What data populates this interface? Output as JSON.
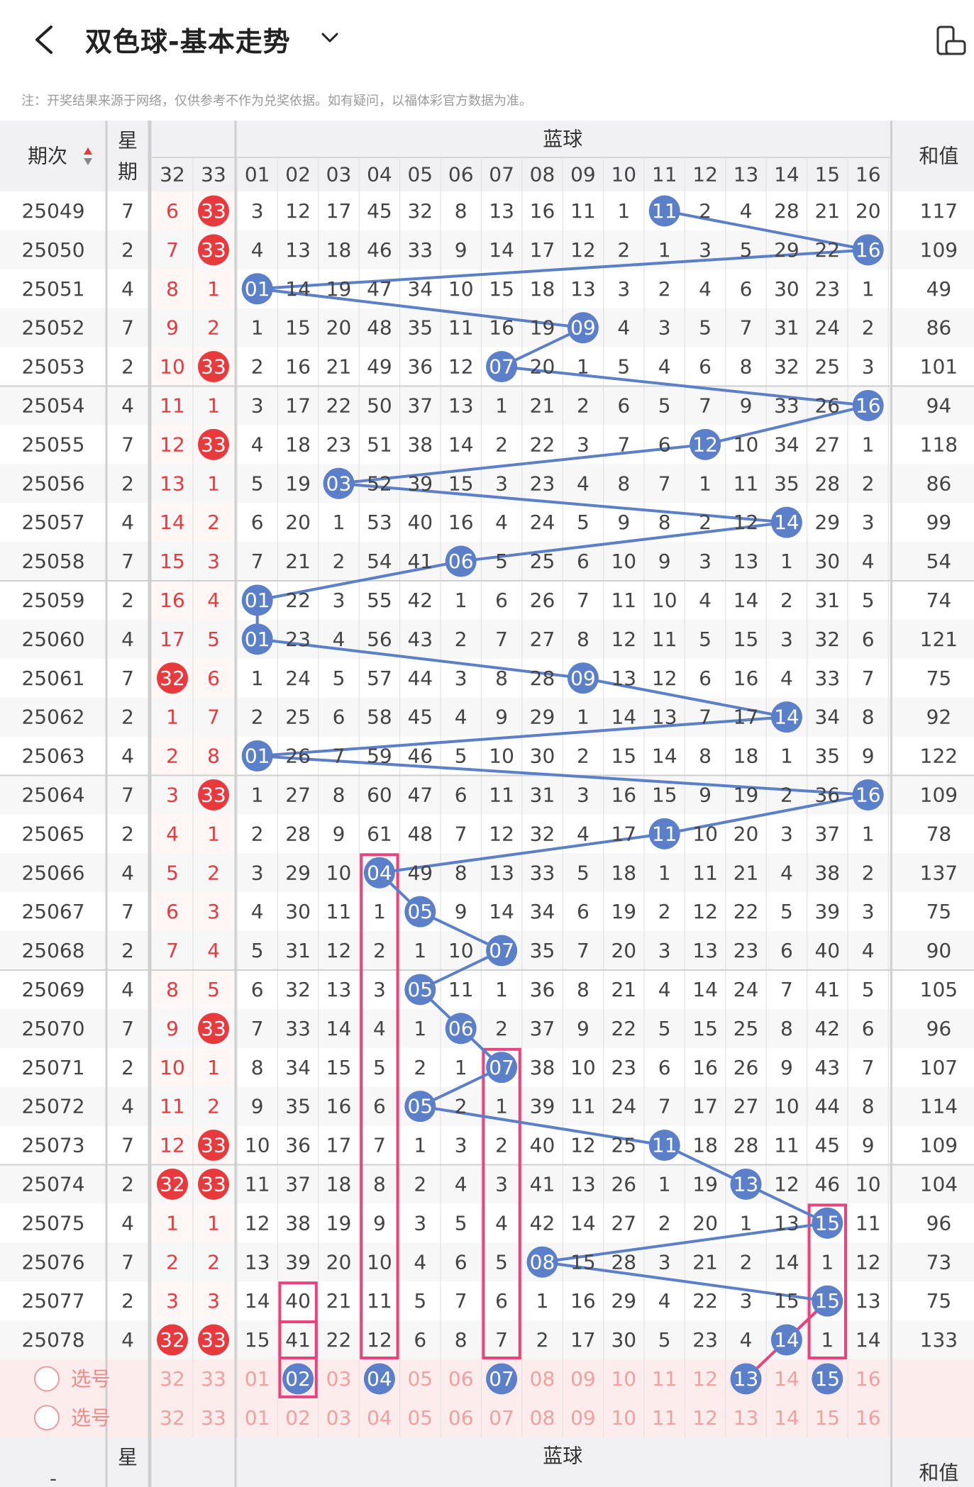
{
  "header": {
    "title": "双色球-基本走势",
    "notice": "注：开奖结果来源于网络，仅供参考不作为兑奖依据。如有疑问，以福体彩官方数据为准。"
  },
  "table": {
    "col_period": "期次",
    "col_weekday": "星期",
    "blue_group": "蓝球",
    "col_sum": "和值",
    "weekday_partial": "星",
    "partial_dash": "-",
    "red_headers": [
      "32",
      "33"
    ],
    "blue_headers": [
      "01",
      "02",
      "03",
      "04",
      "05",
      "06",
      "07",
      "08",
      "09",
      "10",
      "11",
      "12",
      "13",
      "14",
      "15",
      "16"
    ],
    "rows": [
      {
        "period": "25049",
        "weekday": "7",
        "red": [
          "6",
          "33"
        ],
        "blue": [
          3,
          12,
          17,
          45,
          32,
          8,
          13,
          16,
          11,
          1,
          11,
          2,
          4,
          28,
          21,
          20
        ],
        "hit": 11,
        "sum": "117",
        "redhit": [
          false,
          true
        ]
      },
      {
        "period": "25050",
        "weekday": "2",
        "red": [
          "7",
          "33"
        ],
        "blue": [
          4,
          13,
          18,
          46,
          33,
          9,
          14,
          17,
          12,
          2,
          1,
          3,
          5,
          29,
          22,
          16
        ],
        "hit": 16,
        "sum": "109",
        "redhit": [
          false,
          true
        ]
      },
      {
        "period": "25051",
        "weekday": "4",
        "red": [
          "8",
          "1"
        ],
        "blue": [
          1,
          14,
          19,
          47,
          34,
          10,
          15,
          18,
          13,
          3,
          2,
          4,
          6,
          30,
          23,
          1
        ],
        "hit": 1,
        "sum": "49",
        "redhit": [
          false,
          false
        ]
      },
      {
        "period": "25052",
        "weekday": "7",
        "red": [
          "9",
          "2"
        ],
        "blue": [
          1,
          15,
          20,
          48,
          35,
          11,
          16,
          19,
          9,
          4,
          3,
          5,
          7,
          31,
          24,
          2
        ],
        "hit": 9,
        "sum": "86",
        "redhit": [
          false,
          false
        ]
      },
      {
        "period": "25053",
        "weekday": "2",
        "red": [
          "10",
          "33"
        ],
        "blue": [
          2,
          16,
          21,
          49,
          36,
          12,
          7,
          20,
          1,
          5,
          4,
          6,
          8,
          32,
          25,
          3
        ],
        "hit": 7,
        "sum": "101",
        "redhit": [
          false,
          true
        ]
      },
      {
        "period": "25054",
        "weekday": "4",
        "red": [
          "11",
          "1"
        ],
        "blue": [
          3,
          17,
          22,
          50,
          37,
          13,
          1,
          21,
          2,
          6,
          5,
          7,
          9,
          33,
          26,
          16
        ],
        "hit": 16,
        "sum": "94",
        "redhit": [
          false,
          false
        ]
      },
      {
        "period": "25055",
        "weekday": "7",
        "red": [
          "12",
          "33"
        ],
        "blue": [
          4,
          18,
          23,
          51,
          38,
          14,
          2,
          22,
          3,
          7,
          6,
          12,
          10,
          34,
          27,
          1
        ],
        "hit": 12,
        "sum": "118",
        "redhit": [
          false,
          true
        ]
      },
      {
        "period": "25056",
        "weekday": "2",
        "red": [
          "13",
          "1"
        ],
        "blue": [
          5,
          19,
          3,
          52,
          39,
          15,
          3,
          23,
          4,
          8,
          7,
          1,
          11,
          35,
          28,
          2
        ],
        "hit": 3,
        "sum": "86",
        "redhit": [
          false,
          false
        ]
      },
      {
        "period": "25057",
        "weekday": "4",
        "red": [
          "14",
          "2"
        ],
        "blue": [
          6,
          20,
          1,
          53,
          40,
          16,
          4,
          24,
          5,
          9,
          8,
          2,
          12,
          14,
          29,
          3
        ],
        "hit": 14,
        "sum": "99",
        "redhit": [
          false,
          false
        ]
      },
      {
        "period": "25058",
        "weekday": "7",
        "red": [
          "15",
          "3"
        ],
        "blue": [
          7,
          21,
          2,
          54,
          41,
          6,
          5,
          25,
          6,
          10,
          9,
          3,
          13,
          1,
          30,
          4
        ],
        "hit": 6,
        "sum": "54",
        "redhit": [
          false,
          false
        ]
      },
      {
        "period": "25059",
        "weekday": "2",
        "red": [
          "16",
          "4"
        ],
        "blue": [
          1,
          22,
          3,
          55,
          42,
          1,
          6,
          26,
          7,
          11,
          10,
          4,
          14,
          2,
          31,
          5
        ],
        "hit": 1,
        "sum": "74",
        "redhit": [
          false,
          false
        ]
      },
      {
        "period": "25060",
        "weekday": "4",
        "red": [
          "17",
          "5"
        ],
        "blue": [
          1,
          23,
          4,
          56,
          43,
          2,
          7,
          27,
          8,
          12,
          11,
          5,
          15,
          3,
          32,
          6
        ],
        "hit": 1,
        "sum": "121",
        "redhit": [
          false,
          false
        ]
      },
      {
        "period": "25061",
        "weekday": "7",
        "red": [
          "32",
          "6"
        ],
        "blue": [
          1,
          24,
          5,
          57,
          44,
          3,
          8,
          28,
          9,
          13,
          12,
          6,
          16,
          4,
          33,
          7
        ],
        "hit": 9,
        "sum": "75",
        "redhit": [
          true,
          false
        ]
      },
      {
        "period": "25062",
        "weekday": "2",
        "red": [
          "1",
          "7"
        ],
        "blue": [
          2,
          25,
          6,
          58,
          45,
          4,
          9,
          29,
          1,
          14,
          13,
          7,
          17,
          14,
          34,
          8
        ],
        "hit": 14,
        "sum": "92",
        "redhit": [
          false,
          false
        ]
      },
      {
        "period": "25063",
        "weekday": "4",
        "red": [
          "2",
          "8"
        ],
        "blue": [
          1,
          26,
          7,
          59,
          46,
          5,
          10,
          30,
          2,
          15,
          14,
          8,
          18,
          1,
          35,
          9
        ],
        "hit": 1,
        "sum": "122",
        "redhit": [
          false,
          false
        ]
      },
      {
        "period": "25064",
        "weekday": "7",
        "red": [
          "3",
          "33"
        ],
        "blue": [
          1,
          27,
          8,
          60,
          47,
          6,
          11,
          31,
          3,
          16,
          15,
          9,
          19,
          2,
          36,
          16
        ],
        "hit": 16,
        "sum": "109",
        "redhit": [
          false,
          true
        ]
      },
      {
        "period": "25065",
        "weekday": "2",
        "red": [
          "4",
          "1"
        ],
        "blue": [
          2,
          28,
          9,
          61,
          48,
          7,
          12,
          32,
          4,
          17,
          11,
          10,
          20,
          3,
          37,
          1
        ],
        "hit": 11,
        "sum": "78",
        "redhit": [
          false,
          false
        ]
      },
      {
        "period": "25066",
        "weekday": "4",
        "red": [
          "5",
          "2"
        ],
        "blue": [
          3,
          29,
          10,
          4,
          49,
          8,
          13,
          33,
          5,
          18,
          1,
          11,
          21,
          4,
          38,
          2
        ],
        "hit": 4,
        "sum": "137",
        "redhit": [
          false,
          false
        ]
      },
      {
        "period": "25067",
        "weekday": "7",
        "red": [
          "6",
          "3"
        ],
        "blue": [
          4,
          30,
          11,
          1,
          5,
          9,
          14,
          34,
          6,
          19,
          2,
          12,
          22,
          5,
          39,
          3
        ],
        "hit": 5,
        "sum": "75",
        "redhit": [
          false,
          false
        ]
      },
      {
        "period": "25068",
        "weekday": "2",
        "red": [
          "7",
          "4"
        ],
        "blue": [
          5,
          31,
          12,
          2,
          1,
          10,
          7,
          35,
          7,
          20,
          3,
          13,
          23,
          6,
          40,
          4
        ],
        "hit": 7,
        "sum": "90",
        "redhit": [
          false,
          false
        ]
      },
      {
        "period": "25069",
        "weekday": "4",
        "red": [
          "8",
          "5"
        ],
        "blue": [
          6,
          32,
          13,
          3,
          5,
          11,
          1,
          36,
          8,
          21,
          4,
          14,
          24,
          7,
          41,
          5
        ],
        "hit": 5,
        "sum": "105",
        "redhit": [
          false,
          false
        ]
      },
      {
        "period": "25070",
        "weekday": "7",
        "red": [
          "9",
          "33"
        ],
        "blue": [
          7,
          33,
          14,
          4,
          1,
          6,
          2,
          37,
          9,
          22,
          5,
          15,
          25,
          8,
          42,
          6
        ],
        "hit": 6,
        "sum": "96",
        "redhit": [
          false,
          true
        ]
      },
      {
        "period": "25071",
        "weekday": "2",
        "red": [
          "10",
          "1"
        ],
        "blue": [
          8,
          34,
          15,
          5,
          2,
          1,
          7,
          38,
          10,
          23,
          6,
          16,
          26,
          9,
          43,
          7
        ],
        "hit": 7,
        "sum": "107",
        "redhit": [
          false,
          false
        ]
      },
      {
        "period": "25072",
        "weekday": "4",
        "red": [
          "11",
          "2"
        ],
        "blue": [
          9,
          35,
          16,
          6,
          5,
          2,
          1,
          39,
          11,
          24,
          7,
          17,
          27,
          10,
          44,
          8
        ],
        "hit": 5,
        "sum": "114",
        "redhit": [
          false,
          false
        ]
      },
      {
        "period": "25073",
        "weekday": "7",
        "red": [
          "12",
          "33"
        ],
        "blue": [
          10,
          36,
          17,
          7,
          1,
          3,
          2,
          40,
          12,
          25,
          11,
          18,
          28,
          11,
          45,
          9
        ],
        "hit": 11,
        "sum": "109",
        "redhit": [
          false,
          true
        ]
      },
      {
        "period": "25074",
        "weekday": "2",
        "red": [
          "32",
          "33"
        ],
        "blue": [
          11,
          37,
          18,
          8,
          2,
          4,
          3,
          41,
          13,
          26,
          1,
          19,
          13,
          12,
          46,
          10
        ],
        "hit": 13,
        "sum": "104",
        "redhit": [
          true,
          true
        ]
      },
      {
        "period": "25075",
        "weekday": "4",
        "red": [
          "1",
          "1"
        ],
        "blue": [
          12,
          38,
          19,
          9,
          3,
          5,
          4,
          42,
          14,
          27,
          2,
          20,
          1,
          13,
          15,
          11
        ],
        "hit": 15,
        "sum": "96",
        "redhit": [
          false,
          false
        ]
      },
      {
        "period": "25076",
        "weekday": "7",
        "red": [
          "2",
          "2"
        ],
        "blue": [
          13,
          39,
          20,
          10,
          4,
          6,
          5,
          8,
          15,
          28,
          3,
          21,
          2,
          14,
          1,
          12
        ],
        "hit": 8,
        "sum": "73",
        "redhit": [
          false,
          false
        ]
      },
      {
        "period": "25077",
        "weekday": "2",
        "red": [
          "3",
          "3"
        ],
        "blue": [
          14,
          40,
          21,
          11,
          5,
          7,
          6,
          1,
          16,
          29,
          4,
          22,
          3,
          15,
          15,
          13
        ],
        "hit": 15,
        "sum": "75",
        "redhit": [
          false,
          false
        ]
      },
      {
        "period": "25078",
        "weekday": "4",
        "red": [
          "32",
          "33"
        ],
        "blue": [
          15,
          41,
          22,
          12,
          6,
          8,
          7,
          2,
          17,
          30,
          5,
          23,
          4,
          14,
          1,
          14
        ],
        "hit": 14,
        "sum": "133",
        "redhit": [
          true,
          true
        ]
      }
    ],
    "select_label": "选号",
    "select_row1_picks": [
      2,
      4,
      7,
      13,
      15
    ],
    "colors": {
      "blue_ball": "#5b7fc8",
      "red_ball": "#e8393d",
      "red_text": "#e8393d",
      "pink_box": "#e8437c",
      "pink_row_bg": "#fdecec",
      "header_bg": "#f1f1f3"
    }
  }
}
